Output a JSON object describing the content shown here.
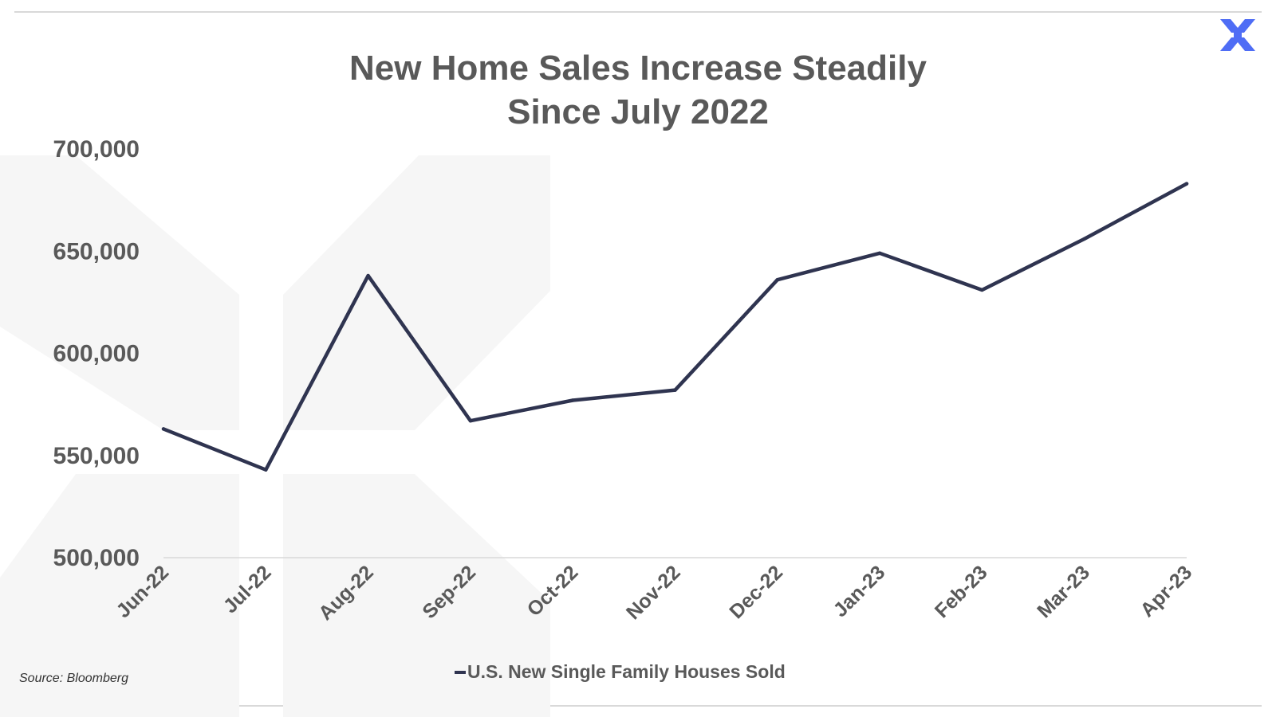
{
  "title_lines": [
    "New Home Sales Increase Steadily",
    "Since July 2022"
  ],
  "source_note": "Source: Bloomberg",
  "logo": {
    "icon": "x-logo-icon",
    "color": "#4f6df5"
  },
  "colors": {
    "series_line": "#2f3450",
    "text": "#595959",
    "watermark": "#f5f5f5",
    "axis": "#d9d9d9"
  },
  "chart_data": {
    "type": "line",
    "title": "New Home Sales Increase Steadily Since July 2022",
    "categories": [
      "Jun-22",
      "Jul-22",
      "Aug-22",
      "Sep-22",
      "Oct-22",
      "Nov-22",
      "Dec-22",
      "Jan-23",
      "Feb-23",
      "Mar-23",
      "Apr-23"
    ],
    "series": [
      {
        "name": "U.S. New Single Family Houses Sold",
        "values": [
          563000,
          543000,
          638000,
          567000,
          577000,
          582000,
          636000,
          649000,
          631000,
          656000,
          683000
        ]
      }
    ],
    "ylim": [
      500000,
      700000
    ],
    "yticks": [
      500000,
      550000,
      600000,
      650000,
      700000
    ],
    "ytick_labels": [
      "500,000",
      "550,000",
      "600,000",
      "650,000",
      "700,000"
    ],
    "xlabel": "",
    "ylabel": "",
    "grid": false,
    "legend_position": "bottom"
  }
}
